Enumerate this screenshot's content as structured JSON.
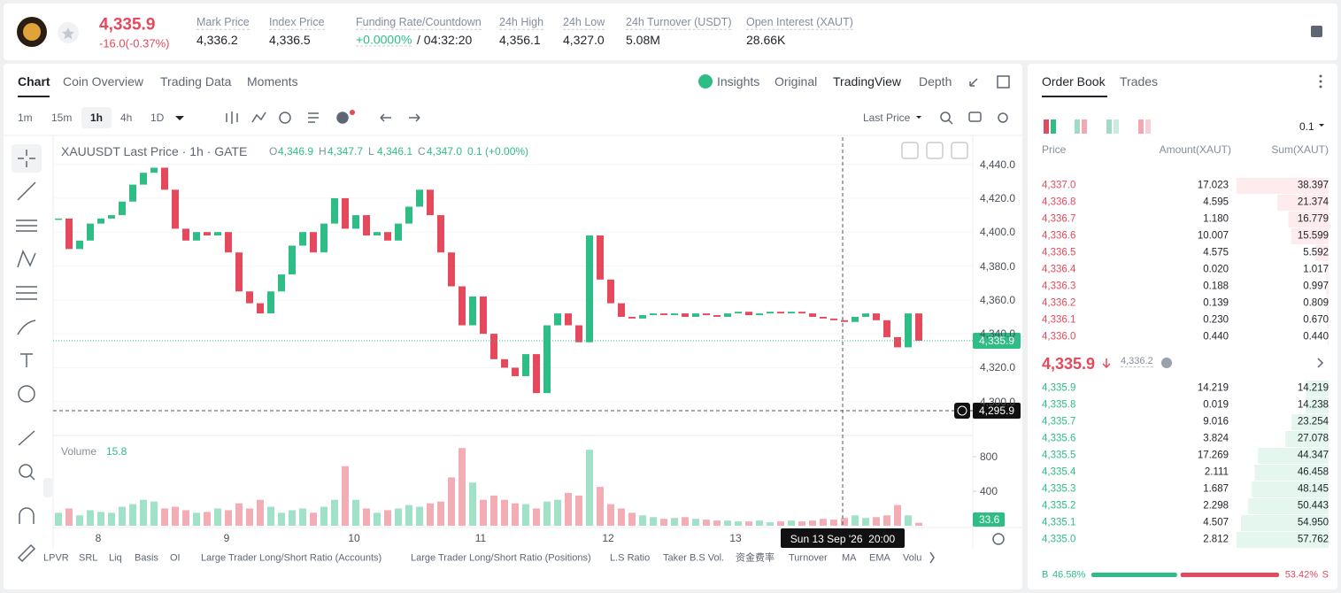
{
  "header": {
    "price": "4,335.9",
    "change": "-16.0(-0.37%)",
    "stats": [
      {
        "label": "Mark Price",
        "value": "4,336.2"
      },
      {
        "label": "Index Price",
        "value": "4,336.5"
      },
      {
        "label": "Funding Rate/Countdown",
        "value": "+0.0000%",
        "value2": "/ 04:32:20"
      },
      {
        "label": "24h High",
        "value": "4,356.1"
      },
      {
        "label": "24h Low",
        "value": "4,327.0"
      },
      {
        "label": "24h Turnover (USDT)",
        "value": "5.08M"
      },
      {
        "label": "Open Interest (XAUT)",
        "value": "28.66K"
      }
    ]
  },
  "tabs": {
    "left": [
      "Chart",
      "Coin Overview",
      "Trading Data",
      "Moments"
    ],
    "right": [
      "Insights",
      "Original",
      "TradingView",
      "Depth"
    ]
  },
  "toolbar": {
    "intervals": [
      "1m",
      "15m",
      "1h",
      "4h",
      "1D"
    ],
    "price_type": "Last Price"
  },
  "chart_data": {
    "type": "candlestick",
    "title": "XAUUSDT Last Price · 1h · GATE",
    "ohlc": [
      {
        "label": "O",
        "value": "4,346.9"
      },
      {
        "label": "H",
        "value": "4,347.7"
      },
      {
        "label": "L",
        "value": "4,346.1"
      },
      {
        "label": "C",
        "value": "4,347.0"
      }
    ],
    "change": "0.1 (+0.00%)",
    "x_labels": [
      "8",
      "9",
      "10",
      "11",
      "12",
      "13"
    ],
    "values": [
      4408,
      4390,
      4395,
      4405,
      4408,
      4410,
      4418,
      4428,
      4435,
      4438,
      4425,
      4402,
      4395,
      4400,
      4398,
      4400,
      4388,
      4365,
      4358,
      4352,
      4365,
      4375,
      4392,
      4400,
      4388,
      4405,
      4420,
      4402,
      4410,
      4398,
      4400,
      4395,
      4405,
      4415,
      4425,
      4410,
      4388,
      4368,
      4345,
      4362,
      4340,
      4325,
      4320,
      4315,
      4328,
      4305,
      4345,
      4352,
      4345,
      4335,
      4398,
      4372,
      4358,
      4350,
      4349,
      4351,
      4352,
      4351,
      4352,
      4350,
      4352,
      4351,
      4350,
      4352,
      4353,
      4351,
      4352,
      4353,
      4352,
      4353,
      4352,
      4350,
      4349,
      4348,
      4347,
      4350,
      4352,
      4348,
      4338,
      4332,
      4352,
      4335.9
    ],
    "colors": {
      "up": "#2ebd85",
      "down": "#e5495c"
    },
    "ylim": [
      4280,
      4456
    ],
    "yticks": [
      {
        "value": 4440,
        "label": "4,440.0"
      },
      {
        "value": 4420,
        "label": "4,420.0"
      },
      {
        "value": 4400,
        "label": "4,400.0"
      },
      {
        "value": 4380,
        "label": "4,380.0"
      },
      {
        "value": 4360,
        "label": "4,360.0"
      },
      {
        "value": 4340,
        "label": "4,340.0"
      },
      {
        "value": 4320,
        "label": "4,320.0"
      },
      {
        "value": 4300,
        "label": "4,300.0"
      }
    ],
    "last_price_label": "4,335.9",
    "crosshair_price": "4,295.9",
    "crosshair_time": "Sun 13 Sep '26  20:00",
    "volume": {
      "title": "Volume",
      "current": "15.8",
      "values": [
        150,
        200,
        120,
        180,
        160,
        150,
        220,
        250,
        300,
        280,
        200,
        220,
        180,
        150,
        160,
        200,
        180,
        260,
        200,
        300,
        220,
        150,
        180,
        200,
        150,
        220,
        300,
        690,
        300,
        200,
        150,
        180,
        200,
        240,
        220,
        260,
        280,
        560,
        900,
        500,
        300,
        350,
        300,
        260,
        250,
        200,
        280,
        300,
        380,
        350,
        880,
        450,
        250,
        200,
        150,
        120,
        100,
        80,
        90,
        100,
        80,
        70,
        60,
        60,
        50,
        50,
        60,
        40,
        50,
        60,
        50,
        60,
        80,
        70,
        90,
        120,
        90,
        100,
        120,
        240,
        120,
        33.6
      ],
      "ylim": [
        0,
        1015
      ],
      "yticks": [
        800,
        400
      ]
    }
  },
  "indicators": [
    "LPVR",
    "SRL",
    "Liq",
    "Basis",
    "OI",
    "Large Trader Long/Short Ratio (Accounts)",
    "Large Trader Long/Short Ratio (Positions)",
    "L.S Ratio",
    "Taker B.S Vol.",
    "资金费率",
    "Turnover",
    "MA",
    "EMA",
    "Volu"
  ],
  "order_book": {
    "tabs": [
      "Order Book",
      "Trades"
    ],
    "precision": "0.1",
    "columns": [
      "Price",
      "Amount(XAUT)",
      "Sum(XAUT)"
    ],
    "asks": [
      [
        "4,337.0",
        "17.023",
        "38.397"
      ],
      [
        "4,336.8",
        "4.595",
        "21.374"
      ],
      [
        "4,336.7",
        "1.180",
        "16.779"
      ],
      [
        "4,336.6",
        "10.007",
        "15.599"
      ],
      [
        "4,336.5",
        "4.575",
        "5.592"
      ],
      [
        "4,336.4",
        "0.020",
        "1.017"
      ],
      [
        "4,336.3",
        "0.188",
        "0.997"
      ],
      [
        "4,336.2",
        "0.139",
        "0.809"
      ],
      [
        "4,336.1",
        "0.230",
        "0.670"
      ],
      [
        "4,336.0",
        "0.440",
        "0.440"
      ]
    ],
    "mid": {
      "price": "4,335.9",
      "mark": "4,336.2"
    },
    "bids": [
      [
        "4,335.9",
        "14.219",
        "14.219"
      ],
      [
        "4,335.8",
        "0.019",
        "14.238"
      ],
      [
        "4,335.7",
        "9.016",
        "23.254"
      ],
      [
        "4,335.6",
        "3.824",
        "27.078"
      ],
      [
        "4,335.5",
        "17.269",
        "44.347"
      ],
      [
        "4,335.4",
        "2.111",
        "46.458"
      ],
      [
        "4,335.3",
        "1.687",
        "48.145"
      ],
      [
        "4,335.2",
        "2.298",
        "50.443"
      ],
      [
        "4,335.1",
        "4.507",
        "54.950"
      ],
      [
        "4,335.0",
        "2.812",
        "57.762"
      ]
    ],
    "ratio": {
      "buy_label": "B",
      "buy": "46.58%",
      "sell": "53.42%",
      "sell_label": "S"
    }
  }
}
